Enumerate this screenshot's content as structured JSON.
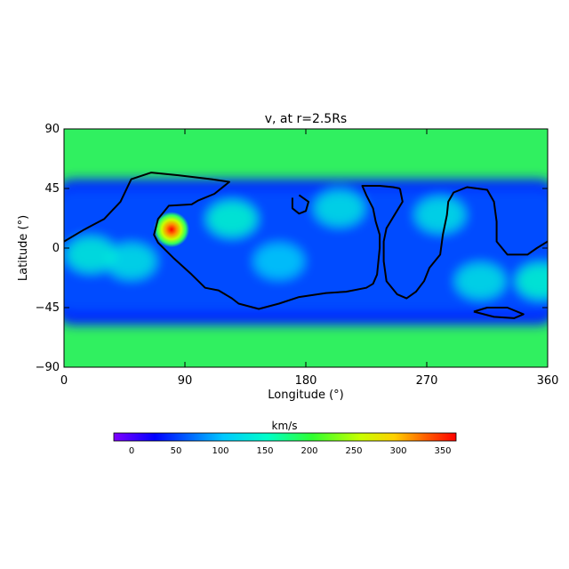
{
  "chart_data": {
    "type": "heatmap",
    "title": "v, at r=2.5Rs",
    "xlabel": "Longitude (°)",
    "ylabel": "Latitude (°)",
    "xlim": [
      0,
      360
    ],
    "ylim": [
      -90,
      90
    ],
    "xticks": [
      "0",
      "90",
      "180",
      "270",
      "360"
    ],
    "yticks": [
      "90",
      "45",
      "0",
      "−45",
      "−90"
    ],
    "colorbar": {
      "label": "km/s",
      "range": [
        -20,
        365
      ],
      "ticks": [
        "0",
        "50",
        "100",
        "150",
        "200",
        "250",
        "300",
        "350"
      ],
      "colormap": "rainbow"
    },
    "field": {
      "description_values": {
        "polar_caps_speed": 190,
        "equatorial_band_speed": 55,
        "peak": {
          "lon": 80,
          "lat": 14,
          "speed": 360
        }
      },
      "regions": [
        {
          "lon": 50,
          "lat": -10,
          "speed": 130
        },
        {
          "lon": 125,
          "lat": 22,
          "speed": 150
        },
        {
          "lon": 20,
          "lat": -5,
          "speed": 140
        },
        {
          "lon": 205,
          "lat": 30,
          "speed": 130
        },
        {
          "lon": 280,
          "lat": 25,
          "speed": 130
        },
        {
          "lon": 310,
          "lat": -25,
          "speed": 130
        },
        {
          "lon": 355,
          "lat": -25,
          "speed": 150
        },
        {
          "lon": 160,
          "lat": -10,
          "speed": 110
        }
      ]
    },
    "contours": [
      {
        "name": "region-1",
        "points": [
          [
            0,
            5
          ],
          [
            15,
            14
          ],
          [
            30,
            22
          ],
          [
            42,
            35
          ],
          [
            50,
            52
          ],
          [
            65,
            57
          ],
          [
            85,
            55
          ],
          [
            110,
            52
          ],
          [
            123,
            50
          ],
          [
            112,
            41
          ],
          [
            100,
            36
          ],
          [
            95,
            33
          ],
          [
            78,
            32
          ],
          [
            70,
            22
          ],
          [
            67,
            10
          ],
          [
            70,
            4
          ],
          [
            82,
            -8
          ],
          [
            95,
            -20
          ],
          [
            100,
            -25
          ],
          [
            105,
            -30
          ],
          [
            115,
            -32
          ],
          [
            125,
            -38
          ],
          [
            130,
            -42
          ],
          [
            145,
            -46
          ],
          [
            160,
            -42
          ],
          [
            175,
            -37
          ],
          [
            195,
            -34
          ],
          [
            210,
            -33
          ],
          [
            225,
            -30
          ],
          [
            230,
            -27
          ],
          [
            233,
            -20
          ],
          [
            235,
            0
          ],
          [
            235,
            10
          ],
          [
            232,
            20
          ],
          [
            230,
            30
          ],
          [
            225,
            40
          ],
          [
            222,
            47
          ],
          [
            235,
            47
          ],
          [
            245,
            46
          ],
          [
            250,
            45
          ]
        ]
      },
      {
        "name": "region-2",
        "points": [
          [
            175,
            40
          ],
          [
            182,
            35
          ],
          [
            180,
            28
          ],
          [
            175,
            26
          ],
          [
            170,
            30
          ],
          [
            170,
            38
          ]
        ]
      },
      {
        "name": "region-3",
        "points": [
          [
            250,
            45
          ],
          [
            252,
            35
          ],
          [
            246,
            25
          ],
          [
            240,
            15
          ],
          [
            238,
            5
          ],
          [
            238,
            -10
          ],
          [
            240,
            -25
          ],
          [
            248,
            -35
          ],
          [
            255,
            -38
          ],
          [
            262,
            -33
          ],
          [
            268,
            -25
          ],
          [
            272,
            -15
          ],
          [
            280,
            -5
          ],
          [
            282,
            10
          ],
          [
            285,
            25
          ],
          [
            286,
            35
          ],
          [
            290,
            42
          ],
          [
            300,
            46
          ],
          [
            315,
            44
          ],
          [
            320,
            35
          ],
          [
            322,
            20
          ],
          [
            322,
            5
          ],
          [
            330,
            -5
          ],
          [
            345,
            -5
          ],
          [
            352,
            0
          ],
          [
            360,
            5
          ]
        ]
      },
      {
        "name": "region-4",
        "points": [
          [
            305,
            -48
          ],
          [
            320,
            -52
          ],
          [
            335,
            -53
          ],
          [
            342,
            -50
          ],
          [
            330,
            -45
          ],
          [
            315,
            -45
          ],
          [
            305,
            -48
          ]
        ]
      }
    ]
  }
}
